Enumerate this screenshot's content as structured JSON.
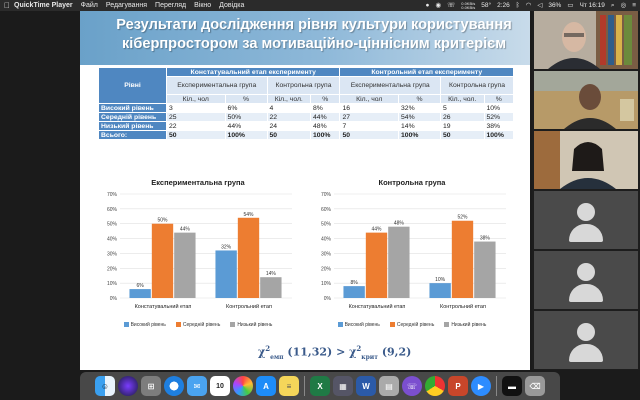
{
  "menubar": {
    "app_name": "QuickTime Player",
    "items": [
      "Файл",
      "Редагування",
      "Перегляд",
      "Вікно",
      "Довідка"
    ],
    "net_up": "0.0KB/s",
    "net_down": "0.0KB/s",
    "temp": "58°",
    "time_short": "2:26",
    "battery": "36%",
    "clock": "Чт 16:19"
  },
  "slide": {
    "title_line1": "Результати дослідження рівня культури користування",
    "title_line2": "кіберпростором за мотиваційно-ціннісним критерієм",
    "table": {
      "col_levels": "Рівні",
      "stage1": "Констатувальний етап експерименту",
      "stage2": "Контрольний етап експерименту",
      "group_exp": "Експериментальна група",
      "group_ctrl": "Контрольна група",
      "count": "Кіл., чол",
      "count2": "Кіл., чол.",
      "pct": "%",
      "rows": [
        {
          "label": "Високий рівень",
          "v": [
            "3",
            "6%",
            "4",
            "8%",
            "16",
            "32%",
            "5",
            "10%"
          ]
        },
        {
          "label": "Середній рівень",
          "v": [
            "25",
            "50%",
            "22",
            "44%",
            "27",
            "54%",
            "26",
            "52%"
          ]
        },
        {
          "label": "Низький рівень",
          "v": [
            "22",
            "44%",
            "24",
            "48%",
            "7",
            "14%",
            "19",
            "38%"
          ]
        },
        {
          "label": "Всього:",
          "v": [
            "50",
            "100%",
            "50",
            "100%",
            "50",
            "100%",
            "50",
            "100%"
          ]
        }
      ]
    },
    "formula": {
      "chi": "χ",
      "emp_sub": "емп",
      "sq": "2",
      "emp_val": "(11,32) >",
      "crit_sub": "крит",
      "crit_val": "(9,2)"
    }
  },
  "colors": {
    "high": "#5b9bd5",
    "medium": "#ed7d31",
    "low": "#a5a5a5"
  },
  "chart_data": [
    {
      "type": "bar",
      "title": "Експериментальна група",
      "categories": [
        "Констатувальний етап",
        "Контрольний етап"
      ],
      "series": [
        {
          "name": "Високий рівень",
          "values": [
            6,
            32
          ]
        },
        {
          "name": "Середній рівень",
          "values": [
            50,
            54
          ]
        },
        {
          "name": "Низький рівень",
          "values": [
            44,
            14
          ]
        }
      ],
      "ylim": [
        0,
        70
      ],
      "yticks": [
        "0%",
        "10%",
        "20%",
        "30%",
        "40%",
        "50%",
        "60%",
        "70%"
      ],
      "grid": true,
      "legend_position": "bottom"
    },
    {
      "type": "bar",
      "title": "Контрольна група",
      "categories": [
        "Констатувальний етап",
        "Контрольний етап"
      ],
      "series": [
        {
          "name": "Високий рівень",
          "values": [
            8,
            10
          ]
        },
        {
          "name": "Середній рівень",
          "values": [
            44,
            52
          ]
        },
        {
          "name": "Низький рівень",
          "values": [
            48,
            38
          ]
        }
      ],
      "ylim": [
        0,
        70
      ],
      "yticks": [
        "0%",
        "10%",
        "20%",
        "30%",
        "40%",
        "50%",
        "60%",
        "70%"
      ],
      "grid": true,
      "legend_position": "bottom"
    }
  ],
  "dock": {
    "icons": [
      "finder-icon",
      "siri-icon",
      "launchpad-icon",
      "safari-icon",
      "mail-icon",
      "calendar-icon",
      "photos-icon",
      "appstore-icon",
      "notes-icon",
      "excel-icon",
      "gallery-icon",
      "word-icon",
      "contacts-icon",
      "viber-icon",
      "chrome-icon",
      "powerpoint-icon",
      "zoom-icon",
      "terminal-icon",
      "trash-icon"
    ],
    "calendar_day": "10"
  }
}
